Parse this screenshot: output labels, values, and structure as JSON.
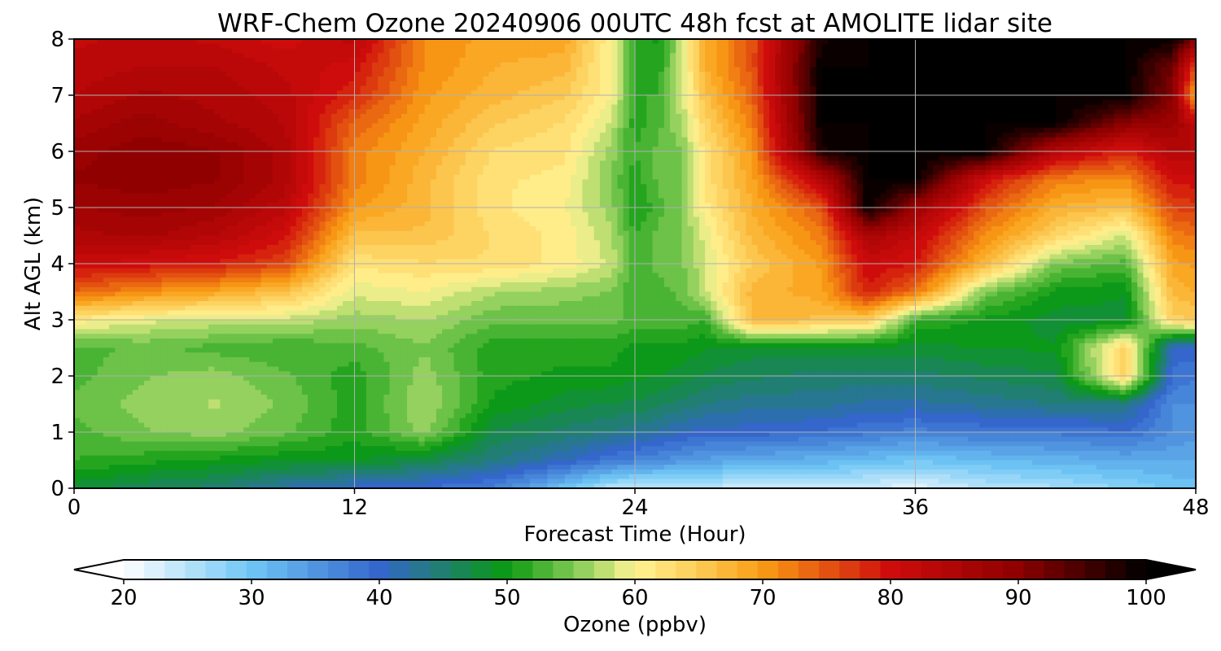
{
  "chart_data": {
    "type": "heatmap",
    "title": "WRF-Chem Ozone  20240906 00UTC 48h fcst at AMOLITE lidar site",
    "xlabel": "Forecast Time (Hour)",
    "ylabel": "Alt AGL (km)",
    "xlim": [
      0,
      48
    ],
    "ylim": [
      0,
      8
    ],
    "x_ticks": [
      0,
      12,
      24,
      36,
      48
    ],
    "y_ticks": [
      0,
      1,
      2,
      3,
      4,
      5,
      6,
      7,
      8
    ],
    "grid": true,
    "colorbar": {
      "label": "Ozone  (ppbv)",
      "range": [
        20,
        100
      ],
      "ticks": [
        20,
        30,
        40,
        50,
        60,
        70,
        80,
        90,
        100
      ],
      "extend": "both",
      "stops": [
        {
          "v": 20,
          "color": "#ffffff"
        },
        {
          "v": 30,
          "color": "#6ec6f5"
        },
        {
          "v": 40,
          "color": "#3466cc"
        },
        {
          "v": 50,
          "color": "#0a9a10"
        },
        {
          "v": 55,
          "color": "#7ac850"
        },
        {
          "v": 60,
          "color": "#fff494"
        },
        {
          "v": 65,
          "color": "#fccb55"
        },
        {
          "v": 70,
          "color": "#f99c14"
        },
        {
          "v": 80,
          "color": "#cf0c0c"
        },
        {
          "v": 90,
          "color": "#8e0000"
        },
        {
          "v": 100,
          "color": "#000000"
        }
      ]
    },
    "x": [
      0,
      3,
      6,
      9,
      12,
      15,
      18,
      21,
      23,
      24,
      25,
      26,
      27,
      29,
      32,
      34,
      36,
      39,
      42,
      45,
      47,
      48
    ],
    "y": [
      0,
      0.5,
      1,
      1.5,
      2,
      2.5,
      3,
      3.5,
      4,
      4.5,
      5,
      5.5,
      6,
      6.5,
      7,
      7.5,
      8
    ],
    "z": [
      [
        48,
        46,
        45,
        42,
        40,
        39,
        37,
        30,
        25,
        24,
        24,
        24,
        24,
        24,
        24,
        23,
        22,
        25,
        26,
        28,
        30,
        30
      ],
      [
        52,
        51,
        50,
        49,
        49,
        47,
        44,
        41,
        38,
        37,
        36,
        35,
        34,
        33,
        32,
        31,
        30,
        31,
        32,
        33,
        33,
        33
      ],
      [
        53,
        55,
        56,
        54,
        51,
        56,
        47,
        45,
        44,
        43,
        42,
        41,
        40,
        40,
        39,
        38,
        37,
        38,
        38,
        39,
        36,
        35
      ],
      [
        54,
        56,
        57,
        55,
        51,
        57,
        50,
        48,
        47,
        47,
        46,
        45,
        44,
        43,
        43,
        42,
        42,
        43,
        44,
        44,
        36,
        36
      ],
      [
        53,
        55,
        56,
        54,
        51,
        56,
        51,
        50,
        50,
        49,
        49,
        48,
        47,
        46,
        45,
        45,
        45,
        46,
        47,
        64,
        39,
        38
      ],
      [
        53,
        54,
        53,
        52,
        53,
        55,
        51,
        51,
        51,
        50,
        50,
        50,
        49,
        48,
        48,
        48,
        48,
        49,
        49,
        64,
        40,
        40
      ],
      [
        61,
        59,
        58,
        58,
        56,
        57,
        54,
        54,
        54,
        53,
        53,
        53,
        52,
        67,
        66,
        65,
        52,
        50,
        48,
        48,
        64,
        65
      ],
      [
        74,
        71,
        69,
        66,
        59,
        60,
        57,
        56,
        55,
        52,
        53,
        54,
        58,
        67,
        69,
        79,
        73,
        55,
        50,
        49,
        67,
        68
      ],
      [
        81,
        80,
        79,
        76,
        62,
        63,
        63,
        61,
        58,
        53,
        54,
        55,
        58,
        65,
        70,
        81,
        79,
        67,
        55,
        53,
        69,
        70
      ],
      [
        85,
        86,
        84,
        80,
        66,
        66,
        63,
        61,
        57,
        52,
        54,
        55,
        59,
        67,
        72,
        86,
        82,
        71,
        64,
        58,
        72,
        73
      ],
      [
        87,
        88,
        87,
        83,
        70,
        67,
        62,
        60,
        56,
        50,
        53,
        55,
        61,
        68,
        75,
        100,
        88,
        75,
        68,
        66,
        76,
        77
      ],
      [
        89,
        90,
        89,
        85,
        72,
        67,
        62,
        61,
        55,
        51,
        54,
        55,
        62,
        69,
        84,
        100,
        100,
        80,
        72,
        71,
        80,
        80
      ],
      [
        88,
        90,
        89,
        85,
        72,
        68,
        63,
        62,
        56,
        52,
        54,
        55,
        62,
        70,
        98,
        100,
        100,
        100,
        84,
        78,
        84,
        84
      ],
      [
        86,
        88,
        86,
        84,
        74,
        69,
        65,
        63,
        58,
        51,
        53,
        57,
        64,
        72,
        100,
        100,
        100,
        100,
        100,
        90,
        88,
        82
      ],
      [
        84,
        86,
        85,
        83,
        78,
        70,
        67,
        65,
        60,
        52,
        52,
        58,
        66,
        74,
        100,
        100,
        100,
        100,
        100,
        100,
        90,
        68
      ],
      [
        83,
        84,
        84,
        82,
        80,
        71,
        68,
        67,
        60,
        52,
        51,
        58,
        68,
        75,
        100,
        100,
        100,
        100,
        100,
        100,
        92,
        75
      ],
      [
        82,
        83,
        82,
        80,
        83,
        71,
        69,
        69,
        60,
        52,
        50,
        58,
        68,
        75,
        98,
        100,
        100,
        100,
        100,
        100,
        100,
        90
      ]
    ]
  }
}
